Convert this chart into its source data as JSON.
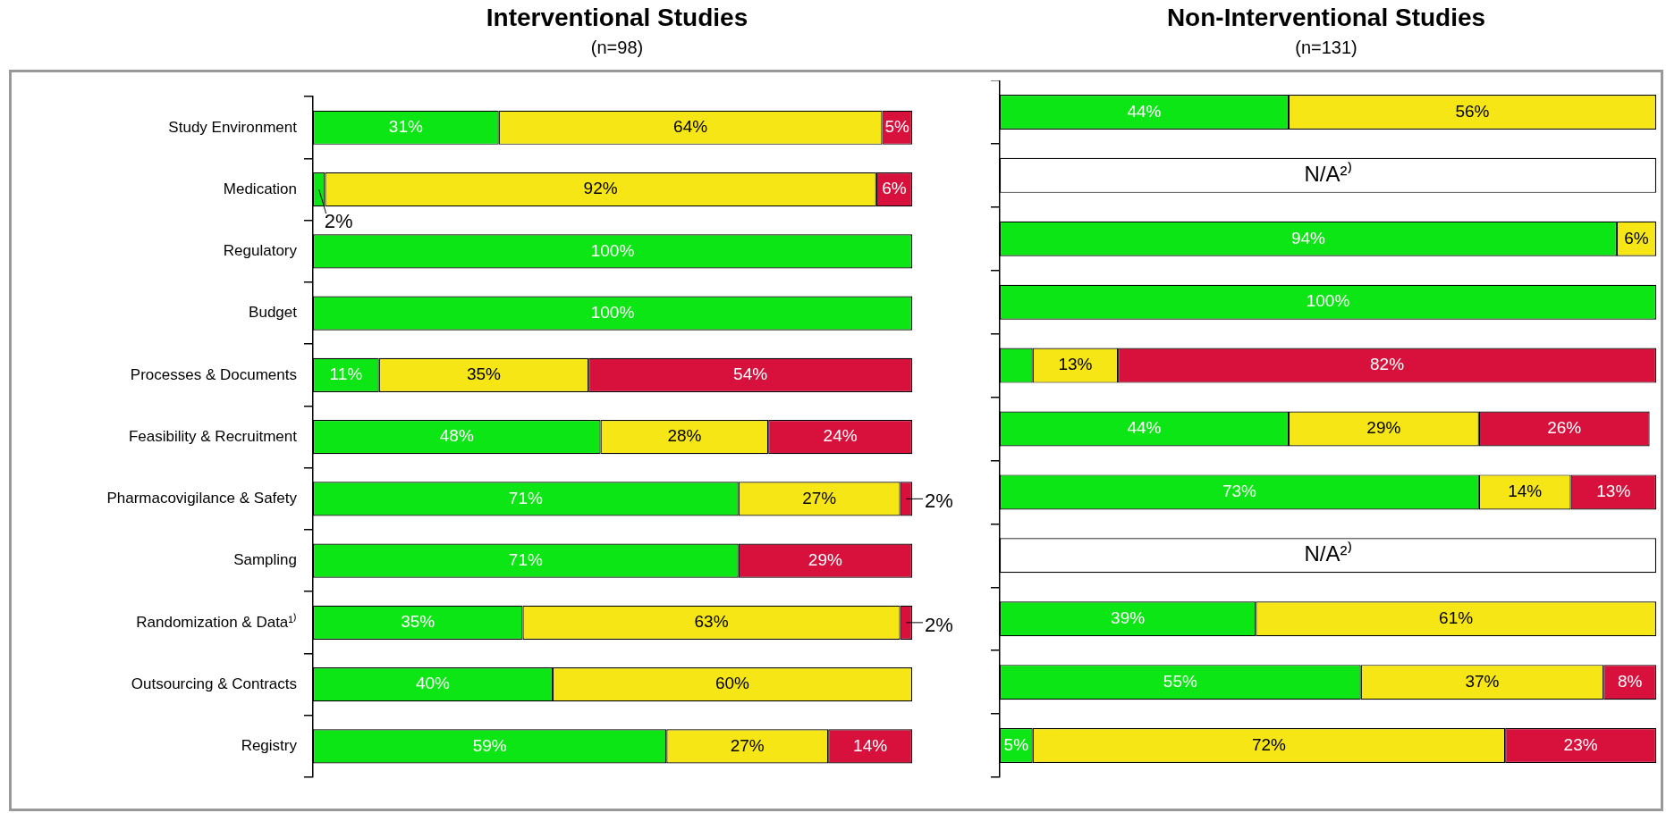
{
  "chart_data": [
    {
      "type": "bar",
      "orientation": "horizontal",
      "stacked": true,
      "title": "Interventional Studies",
      "subtitle": "(n=98)",
      "categories": [
        "Study Environment",
        "Medication",
        "Regulatory",
        "Budget",
        "Processes & Documents",
        "Feasibility & Recruitment",
        "Pharmacovigilance & Safety",
        "Sampling",
        "Randomization & Data¹⁾",
        "Outsourcing & Contracts",
        "Registry"
      ],
      "xlim": [
        0,
        100
      ],
      "tick_labels": "y",
      "legend": false,
      "series": [
        {
          "color": "#0ce614",
          "values": [
            31,
            2,
            100,
            100,
            11,
            48,
            71,
            71,
            35,
            40,
            59
          ],
          "value_labels": [
            "31%",
            "2%",
            "100%",
            "100%",
            "11%",
            "48%",
            "71%",
            "71%",
            "35%",
            "40%",
            "59%"
          ]
        },
        {
          "color": "#f7e615",
          "values": [
            64,
            92,
            0,
            0,
            35,
            28,
            27,
            0,
            63,
            60,
            27
          ],
          "value_labels": [
            "64%",
            "92%",
            null,
            null,
            "35%",
            "28%",
            "27%",
            null,
            "63%",
            "60%",
            "27%"
          ]
        },
        {
          "color": "#d8103c",
          "values": [
            5,
            6,
            0,
            0,
            54,
            24,
            2,
            29,
            2,
            0,
            14
          ],
          "value_labels": [
            "5%",
            "6%",
            null,
            null,
            "54%",
            "24%",
            "2%",
            "29%",
            "2%",
            null,
            "14%"
          ]
        }
      ]
    },
    {
      "type": "bar",
      "orientation": "horizontal",
      "stacked": true,
      "title": "Non-Interventional Studies",
      "subtitle": "(n=131)",
      "categories": [
        null,
        null,
        null,
        null,
        null,
        null,
        null,
        null,
        null,
        null,
        null
      ],
      "xlim": [
        0,
        100
      ],
      "tick_labels": false,
      "legend": false,
      "series": [
        {
          "color": "#0ce614",
          "values": [
            44,
            null,
            94,
            100,
            5,
            44,
            73,
            null,
            39,
            55,
            5
          ],
          "value_labels": [
            "44%",
            null,
            "94%",
            "100%",
            null,
            "44%",
            "73%",
            null,
            "39%",
            "55%",
            "5%"
          ]
        },
        {
          "color": "#f7e615",
          "values": [
            56,
            null,
            6,
            0,
            13,
            29,
            14,
            null,
            61,
            37,
            72
          ],
          "value_labels": [
            "56%",
            null,
            "6%",
            null,
            "13%",
            "29%",
            "14%",
            null,
            "61%",
            "37%",
            "72%"
          ]
        },
        {
          "color": "#d8103c",
          "values": [
            0,
            null,
            0,
            0,
            82,
            26,
            13,
            null,
            0,
            8,
            23
          ],
          "value_labels": [
            null,
            null,
            null,
            null,
            "82%",
            "26%",
            "13%",
            null,
            null,
            "8%",
            "23%"
          ]
        },
        {
          "color": "#ffffff",
          "values": [
            null,
            100,
            null,
            null,
            null,
            null,
            null,
            100,
            null,
            null,
            null
          ],
          "value_labels": [
            null,
            "N/A²⁾",
            null,
            null,
            null,
            null,
            null,
            "N/A²⁾",
            null,
            null,
            null
          ]
        }
      ]
    }
  ]
}
